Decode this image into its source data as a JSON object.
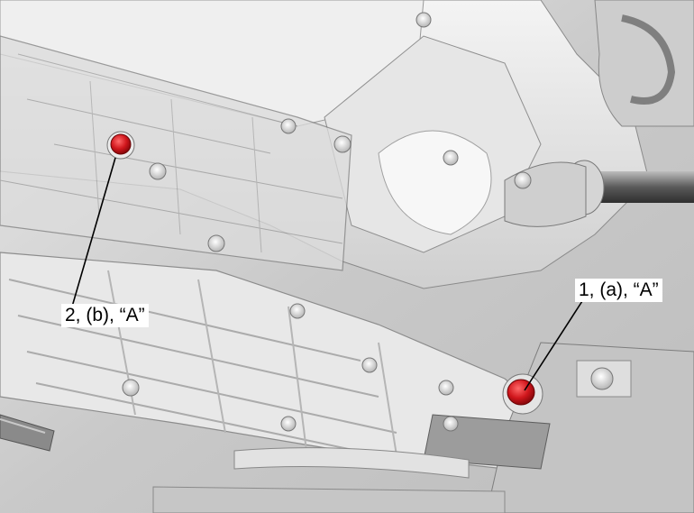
{
  "callouts": [
    {
      "id": "plug-1",
      "label": "1, (a), “A”",
      "part_number": "1",
      "torque_ref": "(a)",
      "note_ref": "“A”"
    },
    {
      "id": "plug-2",
      "label": "2, (b), “A”",
      "part_number": "2",
      "torque_ref": "(b)",
      "note_ref": "“A”"
    }
  ],
  "colors": {
    "plug_highlight": "#d0161c",
    "leader_line": "#000000",
    "label_background": "#ffffff",
    "housing_light": "#f2f2f2",
    "housing_shadow": "#9a9a9a"
  },
  "icons": [
    "drain-plug-icon",
    "fill-plug-icon"
  ]
}
